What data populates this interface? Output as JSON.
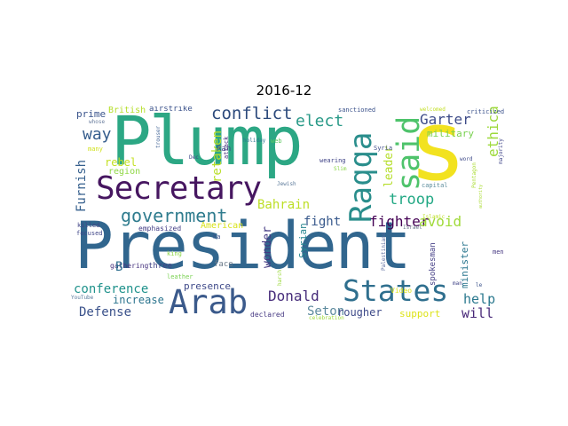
{
  "title": "2016-12",
  "colors": {
    "background": "#ffffff",
    "palette": "viridis"
  },
  "words": [
    {
      "text": "President",
      "color": "#31668e"
    },
    {
      "text": "Plump",
      "color": "#2ca784"
    },
    {
      "text": "s",
      "color": "#f2e21f"
    },
    {
      "text": "Secretary",
      "color": "#461660"
    },
    {
      "text": "Arab",
      "color": "#3b5a8b"
    },
    {
      "text": "States",
      "color": "#2f6f8e"
    },
    {
      "text": "Raqqa",
      "color": "#2a8e8c"
    },
    {
      "text": "said",
      "color": "#4ec36b"
    },
    {
      "text": "government",
      "color": "#2f7c8e"
    },
    {
      "text": "conflict",
      "color": "#2c4a7c"
    },
    {
      "text": "elect",
      "color": "#2a9a88"
    },
    {
      "text": "way",
      "color": "#365d8d"
    },
    {
      "text": "Garter",
      "color": "#3d4b88"
    },
    {
      "text": "ethical",
      "color": "#9dd93b"
    },
    {
      "text": "military",
      "color": "#7ad151"
    },
    {
      "text": "troop",
      "color": "#22a884"
    },
    {
      "text": "leader",
      "color": "#b5de2b"
    },
    {
      "text": "Bahrain",
      "color": "#bddf26"
    },
    {
      "text": "fight",
      "color": "#38598c"
    },
    {
      "text": "fighter",
      "color": "#440154"
    },
    {
      "text": "avoid",
      "color": "#a0da39"
    },
    {
      "text": "retaken",
      "color": "#b8de29"
    },
    {
      "text": "Furnish",
      "color": "#355f8d"
    },
    {
      "text": "rebel",
      "color": "#c4e022"
    },
    {
      "text": "region",
      "color": "#8fd744"
    },
    {
      "text": "conference",
      "color": "#20928c"
    },
    {
      "text": "Defense",
      "color": "#3b528b"
    },
    {
      "text": "increase",
      "color": "#2b748e"
    },
    {
      "text": "Donald",
      "color": "#472d7b"
    },
    {
      "text": "Seton",
      "color": "#5e8b9e"
    },
    {
      "text": "rougher",
      "color": "#3e4a89"
    },
    {
      "text": "support",
      "color": "#dde318"
    },
    {
      "text": "help",
      "color": "#2a788e"
    },
    {
      "text": "will",
      "color": "#482878"
    },
    {
      "text": "wonder",
      "color": "#443a83"
    },
    {
      "text": "Syrian",
      "color": "#25848e"
    },
    {
      "text": "minister",
      "color": "#2a768e"
    },
    {
      "text": "spokesman",
      "color": "#433e85"
    },
    {
      "text": "presence",
      "color": "#3e4989"
    },
    {
      "text": "declared",
      "color": "#453882"
    },
    {
      "text": "celebration",
      "color": "#9fda3a"
    },
    {
      "text": "Video",
      "color": "#dfe318"
    },
    {
      "text": "Palestinians",
      "color": "#5c6c9e"
    },
    {
      "text": "harsh",
      "color": "#9bd93c"
    },
    {
      "text": "face",
      "color": "#6b7a8a"
    },
    {
      "text": "three",
      "color": "#414487"
    },
    {
      "text": "leather",
      "color": "#7ad151"
    },
    {
      "text": "gathering",
      "color": "#46327e"
    },
    {
      "text": "YouTube",
      "color": "#5a7b9c"
    },
    {
      "text": "king",
      "color": "#8bd646"
    },
    {
      "text": "ha",
      "color": "#3b528b"
    },
    {
      "text": "emphasized",
      "color": "#433e85"
    },
    {
      "text": "American",
      "color": "#d8e219"
    },
    {
      "text": "focused",
      "color": "#404688"
    },
    {
      "text": "killed",
      "color": "#414487"
    },
    {
      "text": "B",
      "color": "#2e6e8e"
    },
    {
      "text": "prime",
      "color": "#3a548c"
    },
    {
      "text": "British",
      "color": "#b5de2b"
    },
    {
      "text": "airstrike",
      "color": "#3b528b"
    },
    {
      "text": "whose",
      "color": "#6c7f9f"
    },
    {
      "text": "many",
      "color": "#d0e11c"
    },
    {
      "text": "trouser",
      "color": "#4a6a9a"
    },
    {
      "text": "Dec",
      "color": "#3e4989"
    },
    {
      "text": "Ran",
      "color": "#3f4788"
    },
    {
      "text": "attack",
      "color": "#46327e"
    },
    {
      "text": "holiday",
      "color": "#2a768e"
    },
    {
      "text": "web",
      "color": "#5ec962"
    },
    {
      "text": "wearing",
      "color": "#414487"
    },
    {
      "text": "Slim",
      "color": "#8bd646"
    },
    {
      "text": "Jewish",
      "color": "#5c7a9a"
    },
    {
      "text": "sanctioned",
      "color": "#3b528b"
    },
    {
      "text": "Syria",
      "color": "#3e4a89"
    },
    {
      "text": "capital",
      "color": "#5b8c9c"
    },
    {
      "text": "Israel",
      "color": "#6b7b8b"
    },
    {
      "text": "Islamic",
      "color": "#bddf26"
    },
    {
      "text": "Pentagon",
      "color": "#aadc32"
    },
    {
      "text": "welcomed",
      "color": "#c2df23"
    },
    {
      "text": "word",
      "color": "#3e4a89"
    },
    {
      "text": "criticized",
      "color": "#3b528b"
    },
    {
      "text": "majority",
      "color": "#404688"
    },
    {
      "text": "authority",
      "color": "#aadc32"
    },
    {
      "text": "man",
      "color": "#414487"
    },
    {
      "text": "men",
      "color": "#453781"
    },
    {
      "text": "le",
      "color": "#3b528b"
    }
  ]
}
